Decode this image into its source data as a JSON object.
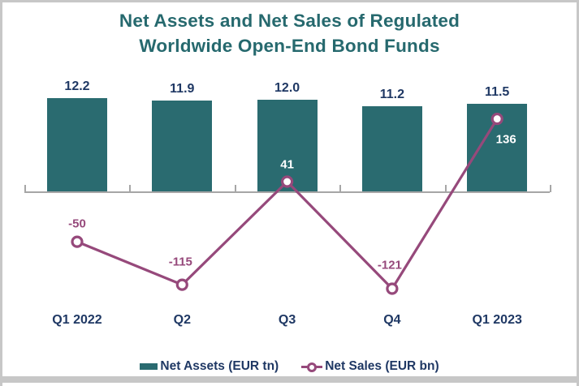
{
  "chart_data": {
    "type": "bar+line combo",
    "title": "Net Assets and Net Sales of Regulated Worldwide Open-End Bond Funds",
    "title_lines": [
      "Net Assets and Net Sales of Regulated",
      "Worldwide Open-End Bond Funds"
    ],
    "categories": [
      "Q1 2022",
      "Q2",
      "Q3",
      "Q4",
      "Q1 2023"
    ],
    "series": [
      {
        "name": "Net Assets (EUR tn)",
        "type": "bar",
        "values": [
          12.2,
          11.9,
          12.0,
          11.2,
          11.5
        ],
        "labels": [
          "12.2",
          "11.9",
          "12.0",
          "11.2",
          "11.5"
        ]
      },
      {
        "name": "Net Sales (EUR bn)",
        "type": "line",
        "values": [
          -50,
          -115,
          41,
          -121,
          136
        ],
        "labels": [
          "-50",
          "-115",
          "41",
          "-121",
          "136"
        ]
      }
    ],
    "axes": {
      "x_ticks": "quarter boundaries",
      "bar_axis_unit": "EUR tn",
      "line_axis_unit": "EUR bn",
      "gridlines": false,
      "value_axis_labels_visible": false
    },
    "legend": {
      "position": "bottom",
      "entries": [
        "Net Assets (EUR tn)",
        "Net Sales (EUR bn)"
      ]
    },
    "colors": {
      "bar": "#2a6b70",
      "line": "#96497b",
      "marker_fill": "#ffffff",
      "title": "#26696e",
      "label_navy": "#1f3864",
      "label_light": "#ffffff",
      "axis": "#a6a6a6",
      "frame_border": "#c7c7c7"
    }
  }
}
